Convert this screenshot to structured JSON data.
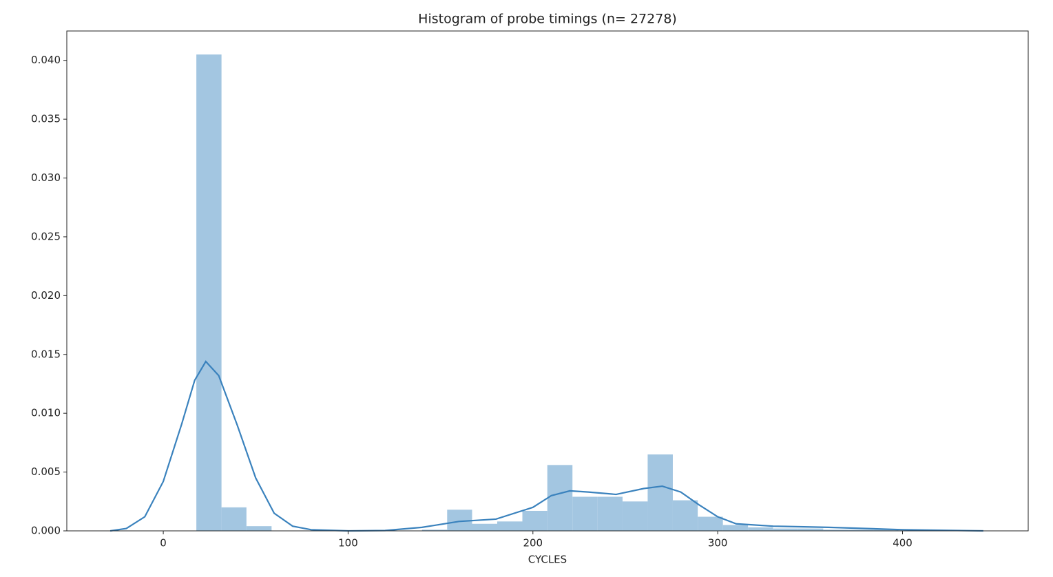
{
  "chart_data": {
    "type": "histogram",
    "title": "Histogram of probe timings (n= 27278)",
    "x_label": "CYCLES",
    "bins": [
      17.9,
      31.5,
      45.0,
      58.6,
      72.2,
      85.7,
      99.3,
      112.9,
      126.4,
      140.0,
      153.6,
      167.1,
      180.7,
      194.3,
      207.8,
      221.4,
      235.0,
      248.5,
      262.1,
      275.7,
      289.2,
      302.8,
      316.4,
      329.9,
      343.5,
      357.1,
      370.6,
      384.2,
      397.8
    ],
    "values": [
      0.0405,
      0.002,
      0.0004,
      0,
      0,
      0,
      0,
      0,
      0,
      0.0001,
      0.0018,
      0.0006,
      0.0008,
      0.0017,
      0.0056,
      0.0029,
      0.0029,
      0.0025,
      0.0065,
      0.0026,
      0.0012,
      0.0005,
      0.0003,
      0.0002,
      0.0002,
      0.0001,
      0.0001,
      0.0001
    ],
    "color": "#a3c6e1",
    "kde": {
      "color": "#3a82bd",
      "x": [
        -28.7,
        -20,
        -10,
        0,
        10,
        17,
        23,
        30,
        40,
        50,
        60,
        70,
        80,
        100,
        120,
        140,
        160,
        180,
        200,
        210,
        220,
        230,
        245,
        260,
        270,
        280,
        290,
        300,
        310,
        330,
        360,
        400,
        443.7
      ],
      "values": [
        0,
        0.0002,
        0.0012,
        0.0042,
        0.0091,
        0.0128,
        0.0144,
        0.0132,
        0.009,
        0.0045,
        0.0015,
        0.0004,
        0.0001,
        0,
        3e-05,
        0.0003,
        0.0008,
        0.001,
        0.002,
        0.003,
        0.0034,
        0.0033,
        0.0031,
        0.0036,
        0.0038,
        0.0033,
        0.0022,
        0.0012,
        0.0006,
        0.0004,
        0.0003,
        0.0001,
        0
      ]
    },
    "xlim": [
      -52.2,
      468
    ],
    "ylim": [
      0,
      0.0425
    ],
    "xticks": [
      0,
      100,
      200,
      300,
      400
    ],
    "yticks": [
      {
        "value": 0,
        "label": "0.000"
      },
      {
        "value": 0.005,
        "label": "0.005"
      },
      {
        "value": 0.01,
        "label": "0.010"
      },
      {
        "value": 0.015,
        "label": "0.015"
      },
      {
        "value": 0.02,
        "label": "0.020"
      },
      {
        "value": 0.025,
        "label": "0.025"
      },
      {
        "value": 0.03,
        "label": "0.030"
      },
      {
        "value": 0.035,
        "label": "0.035"
      },
      {
        "value": 0.04,
        "label": "0.040"
      }
    ]
  }
}
